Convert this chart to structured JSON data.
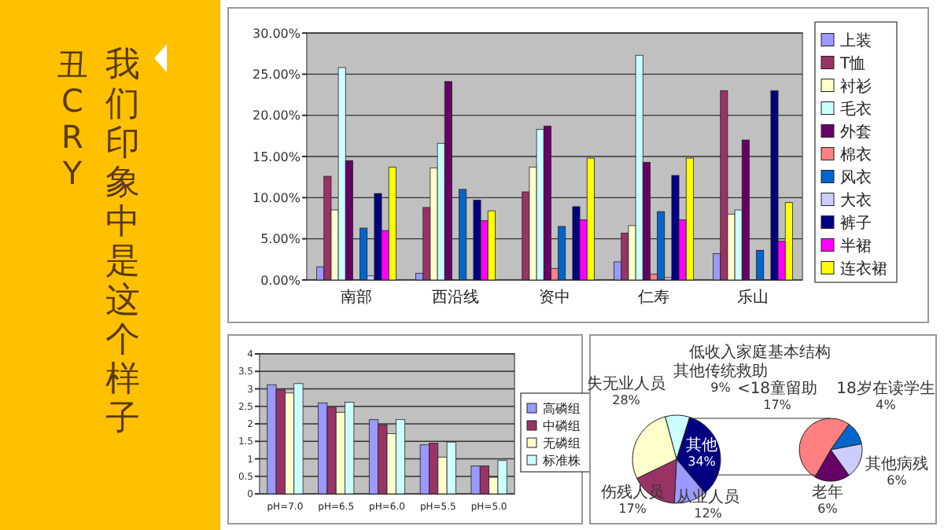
{
  "chart_data": [
    {
      "type": "other",
      "title": "我们印象中是这个样子",
      "annotations": [
        "丑CRY"
      ]
    },
    {
      "type": "bar",
      "categories": [
        "南部",
        "西沿线",
        "资中",
        "仁寿",
        "乐山"
      ],
      "ylim": [
        0,
        30
      ],
      "yticks": [
        {
          "value": 0,
          "label": "0.00%"
        },
        {
          "value": 5,
          "label": "5.00%"
        },
        {
          "value": 10,
          "label": "10.00%"
        },
        {
          "value": 15,
          "label": "15.00%"
        },
        {
          "value": 20,
          "label": "20.00%"
        },
        {
          "value": 25,
          "label": "25.00%"
        },
        {
          "value": 30,
          "label": "30.00%"
        }
      ],
      "grid": "y",
      "legend": "right",
      "series": [
        {
          "name": "上装",
          "color": "#9999ff",
          "values": [
            1.6,
            0.8,
            0,
            2.2,
            3.2
          ]
        },
        {
          "name": "T恤",
          "color": "#993366",
          "values": [
            12.6,
            8.8,
            10.7,
            5.7,
            23.0
          ]
        },
        {
          "name": "衬衫",
          "color": "#ffffcc",
          "values": [
            8.5,
            13.6,
            13.7,
            6.6,
            8.0
          ]
        },
        {
          "name": "毛衣",
          "color": "#ccffff",
          "values": [
            25.8,
            16.6,
            18.3,
            27.3,
            8.5
          ]
        },
        {
          "name": "外套",
          "color": "#660066",
          "values": [
            14.5,
            24.1,
            18.7,
            14.3,
            17.0
          ]
        },
        {
          "name": "棉衣",
          "color": "#ff8080",
          "values": [
            null,
            0,
            1.4,
            0.7,
            null
          ]
        },
        {
          "name": "风衣",
          "color": "#0066cc",
          "values": [
            6.3,
            11.0,
            6.5,
            8.3,
            3.6
          ]
        },
        {
          "name": "大衣",
          "color": "#ccccff",
          "values": [
            0.5,
            0,
            0,
            0.3,
            0
          ]
        },
        {
          "name": "裤子",
          "color": "#000080",
          "values": [
            10.5,
            9.7,
            8.9,
            12.7,
            23.0
          ]
        },
        {
          "name": "半裙",
          "color": "#ff00ff",
          "values": [
            6.0,
            7.2,
            7.3,
            7.3,
            4.7
          ]
        },
        {
          "name": "连衣裙",
          "color": "#ffff00",
          "values": [
            13.7,
            8.4,
            14.8,
            14.8,
            9.4
          ]
        }
      ]
    },
    {
      "type": "bar",
      "categories": [
        "pH=7.0",
        "pH=6.5",
        "pH=6.0",
        "pH=5.5",
        "pH=5.0"
      ],
      "ylim": [
        0,
        4
      ],
      "yticks": [
        0,
        0.5,
        1,
        1.5,
        2,
        2.5,
        3,
        3.5,
        4
      ],
      "grid": "y",
      "legend": "right",
      "series": [
        {
          "name": "高磷组",
          "color": "#9999ff",
          "values": [
            3.12,
            2.6,
            2.12,
            1.4,
            0.8
          ]
        },
        {
          "name": "中磷组",
          "color": "#993366",
          "values": [
            2.97,
            2.47,
            1.97,
            1.45,
            0.8
          ]
        },
        {
          "name": "无磷组",
          "color": "#ffffcc",
          "values": [
            2.88,
            2.33,
            1.72,
            1.05,
            0.47
          ]
        },
        {
          "name": "标准株",
          "color": "#ccffff",
          "values": [
            3.15,
            2.62,
            2.12,
            1.48,
            0.95
          ]
        }
      ]
    },
    {
      "type": "pie",
      "title": "低收入家庭基本结构",
      "categories": [
        "其他传统救助",
        "其他",
        "从业人员",
        "伤残人员",
        "失无业人员"
      ],
      "values": [
        9,
        34,
        12,
        17,
        28
      ],
      "value_labels": [
        "9%",
        "34%",
        "12%",
        "17%",
        "28%"
      ],
      "colors": [
        "#ccffff",
        "#000080",
        "#9999ff",
        "#993366",
        "#ffffcc"
      ]
    },
    {
      "type": "pie",
      "categories": [
        "<18童留助",
        "18岁在读学生",
        "其他病残",
        "老年"
      ],
      "values": [
        17,
        4,
        6,
        6
      ],
      "value_labels": [
        "17%",
        "4%",
        "6%",
        "6%"
      ],
      "colors": [
        "#ff8080",
        "#0066cc",
        "#ccccff",
        "#660066"
      ]
    }
  ]
}
